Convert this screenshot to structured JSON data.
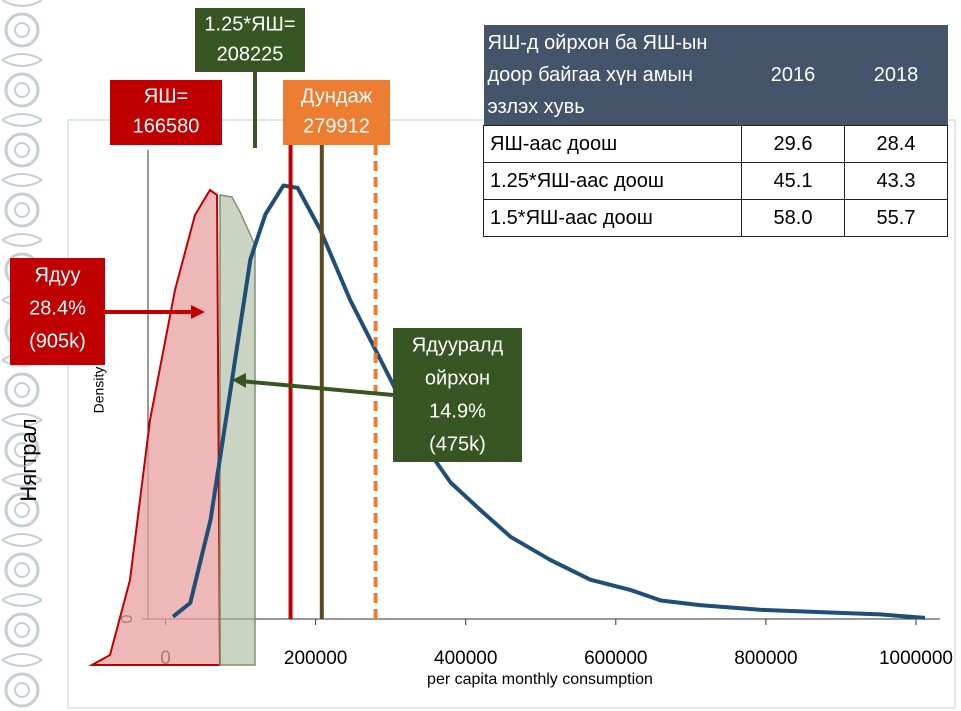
{
  "chart_data": {
    "type": "line",
    "y_label": "Density",
    "x_label": "per capita monthly consumption",
    "outer_label": "Нягтрал",
    "color": "#1f4e79",
    "x": [
      10000,
      33000,
      60000,
      86500,
      113000,
      133000,
      157000,
      176000,
      206000,
      246000,
      300000,
      340000,
      380000,
      420000,
      460000,
      513000,
      566000,
      620000,
      660000,
      712000,
      792000,
      872000,
      952000,
      1012000
    ],
    "values": [
      0.02,
      0.14,
      0.86,
      1.98,
      3.11,
      3.5,
      3.75,
      3.73,
      3.37,
      2.76,
      2.07,
      1.55,
      1.18,
      0.94,
      0.71,
      0.51,
      0.34,
      0.25,
      0.16,
      0.12,
      0.08,
      0.06,
      0.04,
      0.01
    ],
    "xlim": [
      -130000,
      1052000
    ],
    "xticks": [
      0,
      200000,
      400000,
      600000,
      800000,
      1000000
    ],
    "ylim": [
      0,
      4.3
    ],
    "yticks": [
      0
    ],
    "reference_lines": [
      {
        "name": "ЯШ=",
        "value": 166580,
        "color": "#c00000"
      },
      {
        "name": "1.25*ЯШ=",
        "value": 208225,
        "color": "#375623"
      },
      {
        "name": "Дундаж",
        "value": 279912,
        "color": "#ed7d31"
      }
    ],
    "annotations": [
      {
        "lines": [
          "Ядуу",
          "28.4%",
          "(905k)"
        ],
        "color": "#c00000"
      },
      {
        "lines": [
          "Ядууралд",
          "ойрхон",
          "14.9%",
          "(475k)"
        ],
        "color": "#375623"
      }
    ],
    "table": {
      "header": [
        "ЯШ-д ойрхон ба ЯШ-ын доор байгаа хүн амын эзлэх хувь",
        "2016",
        "2018"
      ],
      "rows": [
        [
          "ЯШ-аас доош",
          "29.6",
          "28.4"
        ],
        [
          "1.25*ЯШ-аас доош",
          "45.1",
          "43.3"
        ],
        [
          "1.5*ЯШ-аас доош",
          "58.0",
          "55.7"
        ]
      ]
    }
  }
}
